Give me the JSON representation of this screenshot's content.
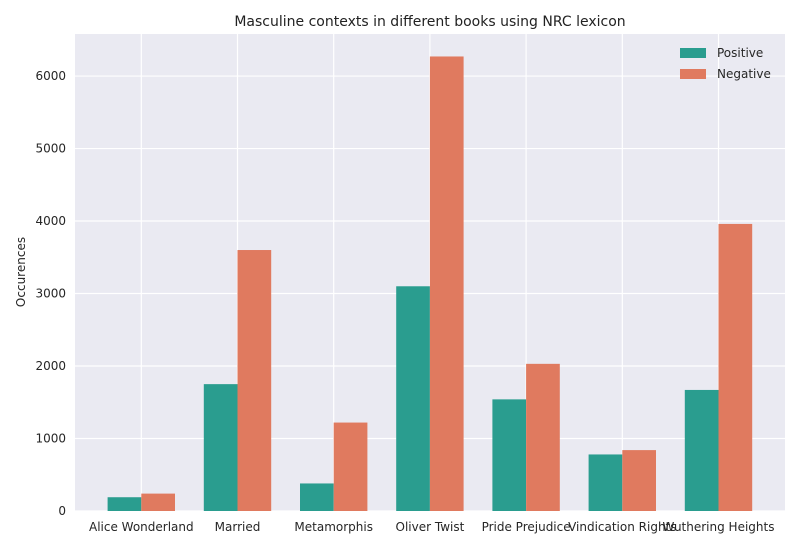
{
  "chart_data": {
    "type": "bar",
    "title": "Masculine contexts in different books using NRC lexicon",
    "xlabel": "",
    "ylabel": "Occurences",
    "categories": [
      "Alice Wonderland",
      "Married",
      "Metamorphis",
      "Oliver Twist",
      "Pride Prejudice",
      "Vindication Rights",
      "Wuthering Heights"
    ],
    "series": [
      {
        "name": "Positive",
        "color": "#2a9d8f",
        "values": [
          190,
          1750,
          380,
          3100,
          1540,
          780,
          1670
        ]
      },
      {
        "name": "Negative",
        "color": "#e07a5f",
        "values": [
          240,
          3600,
          1220,
          6270,
          2030,
          840,
          3960
        ]
      }
    ],
    "yticks": [
      0,
      1000,
      2000,
      3000,
      4000,
      5000,
      6000
    ],
    "ylim": [
      0,
      6580
    ],
    "grid": true,
    "legend": "top-right",
    "background": "#eaeaf2"
  }
}
